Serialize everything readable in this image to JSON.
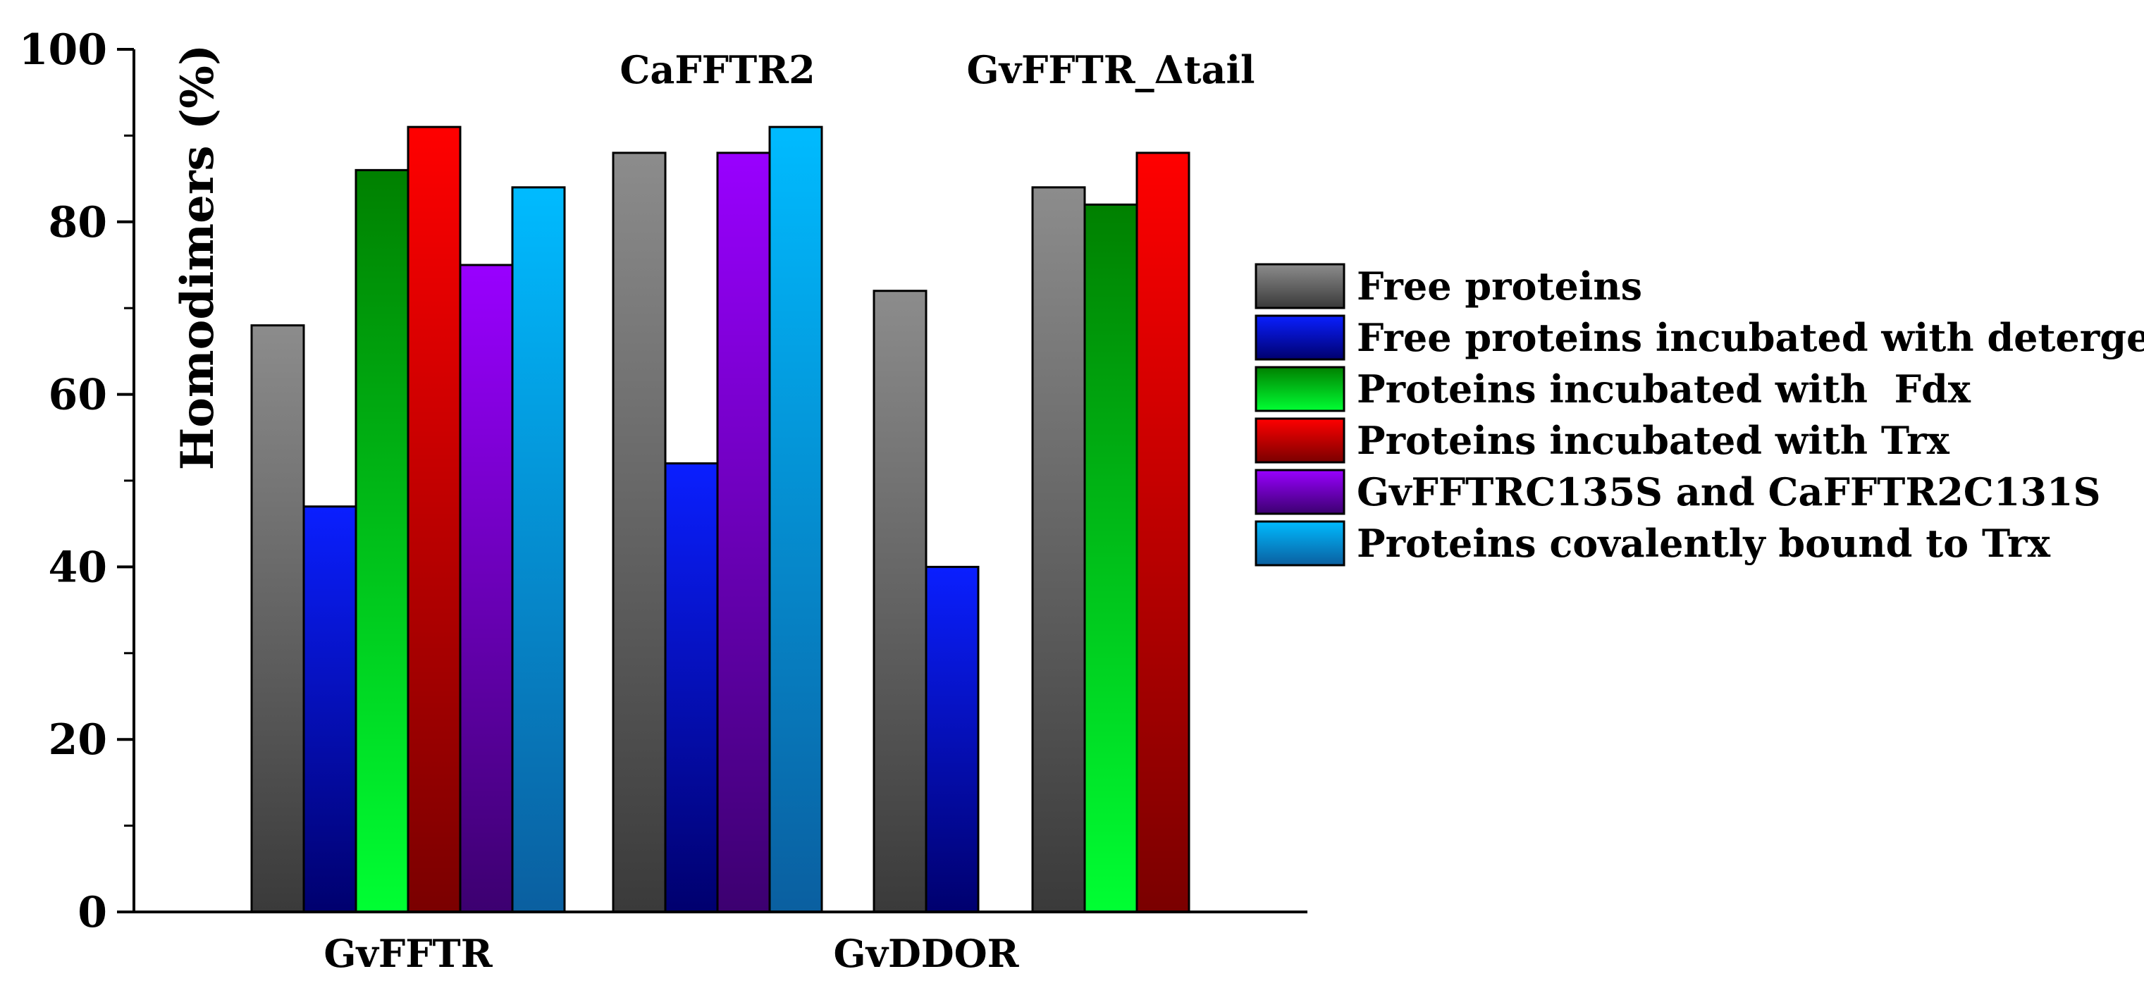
{
  "chart_data": {
    "type": "bar",
    "title": "",
    "xlabel": "",
    "ylabel": "Homodimers (%)",
    "ylim": [
      0,
      100
    ],
    "yticks": [
      0,
      20,
      40,
      60,
      80,
      100
    ],
    "grid": false,
    "legend_position": "right",
    "series": [
      {
        "name": "Free proteins",
        "color_top": "#8c8c8c",
        "color_bottom": "#3a3a3a"
      },
      {
        "name": "Free proteins incubated with detergent",
        "color_top": "#0a1fff",
        "color_bottom": "#00006e"
      },
      {
        "name": "Proteins incubated with  Fdx",
        "color_top": "#008000",
        "color_bottom": "#00ff33"
      },
      {
        "name": "Proteins incubated with Trx",
        "color_top": "#ff0000",
        "color_bottom": "#7a0000"
      },
      {
        "name": "GvFFTRC135S and CaFFTR2C131S",
        "color_top": "#9900ff",
        "color_bottom": "#3c0070"
      },
      {
        "name": "Proteins covalently bound to Trx",
        "color_top": "#00bbff",
        "color_bottom": "#0a5fa0"
      }
    ],
    "groups": [
      {
        "label": "GvFFTR",
        "label_position": "bottom",
        "bars": [
          {
            "series": 0,
            "value": 68
          },
          {
            "series": 1,
            "value": 47
          },
          {
            "series": 2,
            "value": 86
          },
          {
            "series": 3,
            "value": 91
          },
          {
            "series": 4,
            "value": 75
          },
          {
            "series": 5,
            "value": 84
          }
        ]
      },
      {
        "label": "CaFFTR2",
        "label_position": "top",
        "bars": [
          {
            "series": 0,
            "value": 88
          },
          {
            "series": 1,
            "value": 52
          },
          {
            "series": 4,
            "value": 88
          },
          {
            "series": 5,
            "value": 91
          }
        ]
      },
      {
        "label": "GvDDOR",
        "label_position": "bottom",
        "bars": [
          {
            "series": 0,
            "value": 72
          },
          {
            "series": 1,
            "value": 40
          }
        ]
      },
      {
        "label": "GvFFTR_Δtail",
        "label_position": "top",
        "bars": [
          {
            "series": 0,
            "value": 84
          },
          {
            "series": 2,
            "value": 82
          },
          {
            "series": 3,
            "value": 88
          }
        ]
      }
    ]
  }
}
